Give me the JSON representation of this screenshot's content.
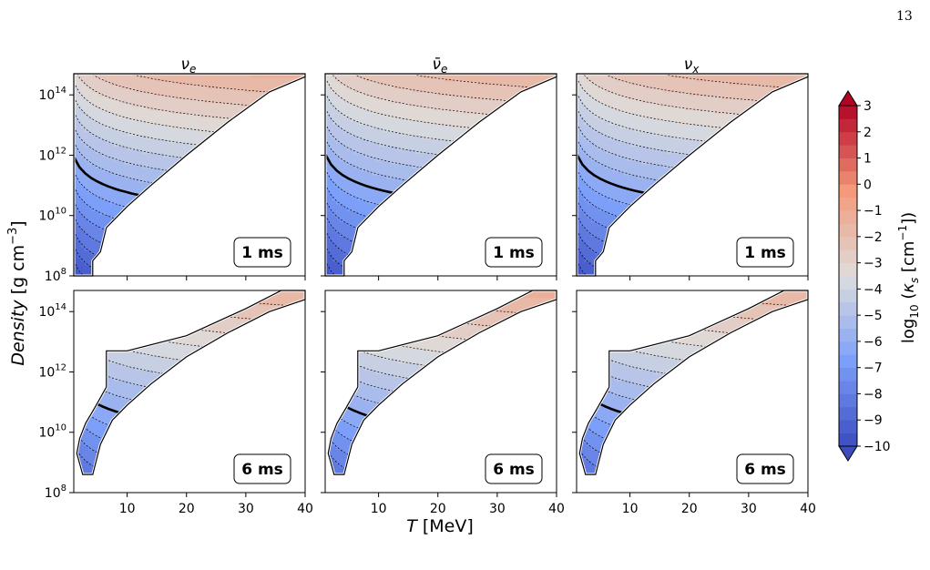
{
  "page_number": "13",
  "chart_data": {
    "type": "heatmap",
    "grid": {
      "rows": 2,
      "cols": 3
    },
    "column_titles": [
      "ν",
      "ν̄",
      "ν"
    ],
    "column_title_subscripts": [
      "e",
      "e",
      "x"
    ],
    "row_time_labels": [
      "1 ms",
      "6 ms"
    ],
    "xlabel": "T [MeV]",
    "xlabel_symbol": "T",
    "xlabel_unit": " [MeV]",
    "ylabel": "Density [g cm−3]",
    "ylabel_word": "Density",
    "ylabel_unit": "[g cm",
    "ylabel_exp": "−3",
    "ylabel_close": "]",
    "xlim": [
      1,
      40
    ],
    "ylim_log10": [
      8,
      14.7
    ],
    "yscale": "log",
    "x_ticks": [
      10,
      20,
      30,
      40
    ],
    "x_tick_labels": [
      "10",
      "20",
      "30",
      "40"
    ],
    "y_ticks_log10": [
      8,
      10,
      12,
      14
    ],
    "y_tick_base": "10",
    "y_tick_exponents": [
      "8",
      "10",
      "12",
      "14"
    ],
    "colorbar": {
      "label": "log10(κs [cm−1])",
      "min": -10,
      "max": 3,
      "levels_step": 0.5,
      "ticks": [
        3,
        2,
        1,
        0,
        -1,
        -2,
        -3,
        -4,
        -5,
        -6,
        -7,
        -8,
        -9,
        -10
      ],
      "tick_labels": [
        "3",
        "2",
        "1",
        "0",
        "−1",
        "−2",
        "−3",
        "−4",
        "−5",
        "−6",
        "−7",
        "−8",
        "−9",
        "−10"
      ],
      "colormap": "coolwarm",
      "extend": "both"
    },
    "highlight_contour_level": -6,
    "panels": [
      {
        "row": 0,
        "col": 0,
        "flavor": "νe",
        "time": "1 ms",
        "kappa_range": [
          -10,
          -1.3
        ],
        "domain_boundary": [
          [
            1.2,
            8.0
          ],
          [
            4.2,
            8.0
          ],
          [
            4.2,
            8.5
          ],
          [
            5.5,
            8.8
          ],
          [
            6.5,
            9.6
          ],
          [
            10,
            10.3
          ],
          [
            14,
            11.0
          ],
          [
            20,
            12.0
          ],
          [
            27,
            13.1
          ],
          [
            34,
            14.1
          ],
          [
            40,
            14.6
          ],
          [
            40,
            14.7
          ],
          [
            1,
            14.7
          ],
          [
            1,
            8.0
          ]
        ]
      },
      {
        "row": 0,
        "col": 1,
        "flavor": "ν̄e",
        "time": "1 ms",
        "kappa_range": [
          -10,
          -1.5
        ],
        "domain_boundary": [
          [
            1.2,
            8.0
          ],
          [
            4.2,
            8.0
          ],
          [
            4.2,
            8.5
          ],
          [
            5.5,
            8.8
          ],
          [
            6.5,
            9.6
          ],
          [
            10,
            10.3
          ],
          [
            14,
            11.0
          ],
          [
            20,
            12.0
          ],
          [
            27,
            13.1
          ],
          [
            34,
            14.1
          ],
          [
            40,
            14.6
          ],
          [
            40,
            14.7
          ],
          [
            1,
            14.7
          ],
          [
            1,
            8.0
          ]
        ]
      },
      {
        "row": 0,
        "col": 2,
        "flavor": "νx",
        "time": "1 ms",
        "kappa_range": [
          -10,
          -1.5
        ],
        "domain_boundary": [
          [
            1.2,
            8.0
          ],
          [
            4.2,
            8.0
          ],
          [
            4.2,
            8.5
          ],
          [
            5.5,
            8.8
          ],
          [
            6.5,
            9.6
          ],
          [
            10,
            10.3
          ],
          [
            14,
            11.0
          ],
          [
            20,
            12.0
          ],
          [
            27,
            13.1
          ],
          [
            34,
            14.1
          ],
          [
            40,
            14.6
          ],
          [
            40,
            14.7
          ],
          [
            1,
            14.7
          ],
          [
            1,
            8.0
          ]
        ]
      },
      {
        "row": 1,
        "col": 0,
        "flavor": "νe",
        "time": "6 ms",
        "kappa_range": [
          -9.5,
          -1.5
        ],
        "domain_boundary": [
          [
            2.5,
            8.6
          ],
          [
            4.2,
            8.6
          ],
          [
            5.5,
            9.6
          ],
          [
            7.5,
            10.4
          ],
          [
            10,
            10.9
          ],
          [
            14,
            11.6
          ],
          [
            20,
            12.5
          ],
          [
            27,
            13.3
          ],
          [
            34,
            14.0
          ],
          [
            40,
            14.4
          ],
          [
            40,
            14.7
          ],
          [
            36,
            14.7
          ],
          [
            30,
            14.1
          ],
          [
            20,
            13.2
          ],
          [
            10,
            12.7
          ],
          [
            6.5,
            12.7
          ],
          [
            6.5,
            11.5
          ],
          [
            4.5,
            10.8
          ],
          [
            3,
            10.3
          ],
          [
            2,
            9.8
          ],
          [
            1.5,
            9.3
          ],
          [
            2.5,
            8.6
          ]
        ]
      },
      {
        "row": 1,
        "col": 1,
        "flavor": "ν̄e",
        "time": "6 ms",
        "kappa_range": [
          -9.5,
          -1.2
        ],
        "domain_boundary": [
          [
            2.5,
            8.6
          ],
          [
            4.2,
            8.6
          ],
          [
            5.5,
            9.6
          ],
          [
            7.5,
            10.4
          ],
          [
            10,
            10.9
          ],
          [
            14,
            11.6
          ],
          [
            20,
            12.5
          ],
          [
            27,
            13.3
          ],
          [
            34,
            14.0
          ],
          [
            40,
            14.4
          ],
          [
            40,
            14.7
          ],
          [
            36,
            14.7
          ],
          [
            30,
            14.1
          ],
          [
            20,
            13.2
          ],
          [
            10,
            12.7
          ],
          [
            6.5,
            12.7
          ],
          [
            6.5,
            11.5
          ],
          [
            4.5,
            10.8
          ],
          [
            3,
            10.3
          ],
          [
            2,
            9.8
          ],
          [
            1.5,
            9.3
          ],
          [
            2.5,
            8.6
          ]
        ]
      },
      {
        "row": 1,
        "col": 2,
        "flavor": "νx",
        "time": "6 ms",
        "kappa_range": [
          -9.5,
          -1.5
        ],
        "domain_boundary": [
          [
            2.5,
            8.6
          ],
          [
            4.2,
            8.6
          ],
          [
            5.5,
            9.6
          ],
          [
            7.5,
            10.4
          ],
          [
            10,
            10.9
          ],
          [
            14,
            11.6
          ],
          [
            20,
            12.5
          ],
          [
            27,
            13.3
          ],
          [
            34,
            14.0
          ],
          [
            40,
            14.4
          ],
          [
            40,
            14.7
          ],
          [
            36,
            14.7
          ],
          [
            30,
            14.1
          ],
          [
            20,
            13.2
          ],
          [
            10,
            12.7
          ],
          [
            6.5,
            12.7
          ],
          [
            6.5,
            11.5
          ],
          [
            4.5,
            10.8
          ],
          [
            3,
            10.3
          ],
          [
            2,
            9.8
          ],
          [
            1.5,
            9.3
          ],
          [
            2.5,
            8.6
          ]
        ]
      }
    ]
  }
}
